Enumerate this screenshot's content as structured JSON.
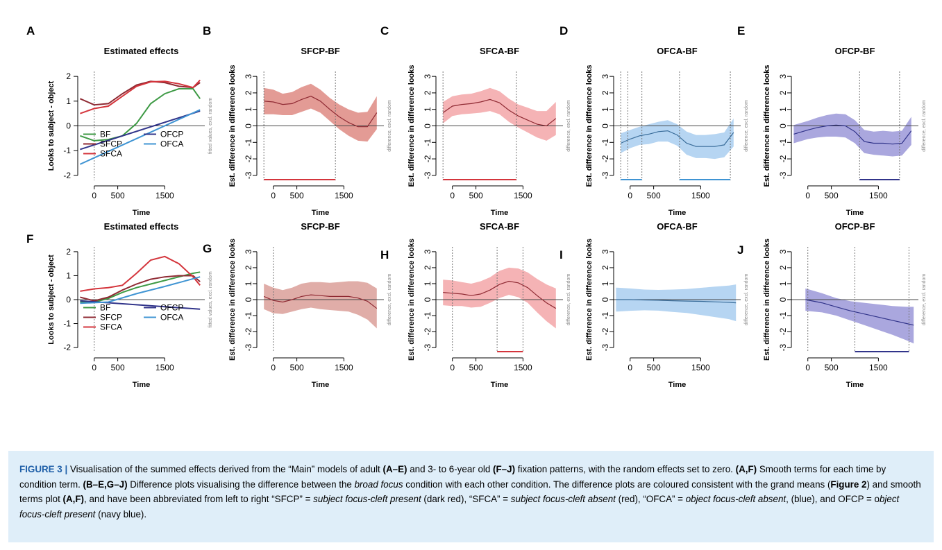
{
  "chart_data": [
    {
      "letter": "A",
      "kind": "effects",
      "title": "Estimated effects",
      "type": "line",
      "xlabel": "Time",
      "ylabel": "Looks to subject - object",
      "side_note": "fitted values, excl. random",
      "xlim": [
        -350,
        2350
      ],
      "ylim": [
        -2.2,
        2.2
      ],
      "xticks": [
        0,
        500,
        1500
      ],
      "yticks": [
        -2,
        -1,
        0,
        1,
        2
      ],
      "vlines": [
        0
      ],
      "legend": {
        "placement": "bottom-right",
        "cols": [
          [
            "BF",
            "SFCP",
            "SFCA"
          ],
          [
            "OFCP",
            "OFCA"
          ]
        ]
      },
      "series": [
        {
          "name": "BF",
          "color": "#3e9a45",
          "x": [
            -300,
            0,
            300,
            600,
            900,
            1200,
            1500,
            1800,
            2100,
            2250
          ],
          "y": [
            -0.4,
            -0.6,
            -0.55,
            -0.4,
            0.1,
            0.9,
            1.3,
            1.5,
            1.5,
            1.1
          ]
        },
        {
          "name": "SFCP",
          "color": "#8f2a33",
          "x": [
            -300,
            0,
            300,
            600,
            900,
            1200,
            1500,
            1800,
            2100,
            2250
          ],
          "y": [
            1.1,
            0.85,
            0.9,
            1.3,
            1.65,
            1.8,
            1.75,
            1.6,
            1.55,
            1.75
          ]
        },
        {
          "name": "SFCA",
          "color": "#d4353c",
          "x": [
            -300,
            0,
            300,
            600,
            900,
            1200,
            1500,
            1800,
            2100,
            2250
          ],
          "y": [
            0.5,
            0.7,
            0.8,
            1.2,
            1.6,
            1.78,
            1.8,
            1.7,
            1.55,
            1.85
          ]
        },
        {
          "name": "OFCP",
          "color": "#31348a",
          "x": [
            -300,
            2250
          ],
          "y": [
            -0.95,
            0.6
          ]
        },
        {
          "name": "OFCA",
          "color": "#3f94d3",
          "x": [
            -300,
            2250
          ],
          "y": [
            -1.55,
            0.65
          ]
        }
      ]
    },
    {
      "letter": "B",
      "kind": "diff",
      "title": "SFCP-BF",
      "type": "line",
      "xlabel": "Time",
      "ylabel": "Est. difference in difference looks",
      "side_note": "difference, excl. random",
      "xlim": [
        -350,
        2350
      ],
      "ylim": [
        -3.3,
        3.3
      ],
      "xticks": [
        0,
        500,
        1500
      ],
      "yticks": [
        -3,
        -2,
        -1,
        0,
        1,
        2,
        3
      ],
      "vlines": [
        -200,
        1320
      ],
      "line_color": "#8f2a33",
      "fill_color": "#d97a72",
      "x": [
        -200,
        0,
        200,
        400,
        600,
        800,
        1000,
        1200,
        1400,
        1600,
        1800,
        2000,
        2200
      ],
      "y": [
        1.5,
        1.45,
        1.3,
        1.35,
        1.6,
        1.8,
        1.5,
        1.0,
        0.55,
        0.2,
        -0.05,
        -0.05,
        0.8
      ],
      "ci": [
        0.8,
        0.75,
        0.65,
        0.7,
        0.75,
        0.75,
        0.7,
        0.7,
        0.75,
        0.8,
        0.85,
        0.9,
        1.0
      ],
      "sig_color": "#d4353c",
      "sig": [
        [
          -200,
          1320
        ]
      ]
    },
    {
      "letter": "C",
      "kind": "diff",
      "title": "SFCA-BF",
      "type": "line",
      "xlabel": "Time",
      "ylabel": "Est. difference in difference looks",
      "side_note": "difference, excl. random",
      "xlim": [
        -350,
        2350
      ],
      "ylim": [
        -3.3,
        3.3
      ],
      "xticks": [
        0,
        500,
        1500
      ],
      "yticks": [
        -3,
        -2,
        -1,
        0,
        1,
        2,
        3
      ],
      "vlines": [
        -200,
        1360
      ],
      "line_color": "#8f2a33",
      "fill_color": "#f19a9c",
      "x": [
        -200,
        0,
        200,
        400,
        600,
        800,
        1000,
        1200,
        1400,
        1600,
        1800,
        2000,
        2200
      ],
      "y": [
        0.8,
        1.2,
        1.3,
        1.35,
        1.45,
        1.6,
        1.4,
        0.95,
        0.6,
        0.35,
        0.1,
        0.0,
        0.45
      ],
      "ci": [
        0.65,
        0.6,
        0.6,
        0.6,
        0.65,
        0.7,
        0.7,
        0.7,
        0.7,
        0.75,
        0.8,
        0.9,
        1.0
      ],
      "sig_color": "#d4353c",
      "sig": [
        [
          -200,
          1360
        ]
      ]
    },
    {
      "letter": "D",
      "kind": "diff",
      "title": "OFCA-BF",
      "type": "line",
      "xlabel": "Time",
      "ylabel": "Est. difference in difference looks",
      "side_note": "difference, excl. random",
      "xlim": [
        -350,
        2350
      ],
      "ylim": [
        -3.3,
        3.3
      ],
      "xticks": [
        0,
        500,
        1500
      ],
      "yticks": [
        -3,
        -2,
        -1,
        0,
        1,
        2,
        3
      ],
      "vlines": [
        -200,
        -50,
        250,
        1050,
        2130
      ],
      "line_color": "#3a6d9a",
      "fill_color": "#9ec7ee",
      "x": [
        -200,
        0,
        200,
        400,
        600,
        800,
        1000,
        1200,
        1400,
        1600,
        1800,
        2000,
        2200
      ],
      "y": [
        -1.05,
        -0.8,
        -0.6,
        -0.5,
        -0.35,
        -0.3,
        -0.55,
        -1.05,
        -1.25,
        -1.25,
        -1.25,
        -1.15,
        -0.4
      ],
      "ci": [
        0.6,
        0.55,
        0.55,
        0.6,
        0.6,
        0.65,
        0.65,
        0.7,
        0.7,
        0.7,
        0.75,
        0.75,
        0.85
      ],
      "sig_color": "#3f94d3",
      "sig": [
        [
          -200,
          250
        ],
        [
          1050,
          2130
        ]
      ]
    },
    {
      "letter": "E",
      "kind": "diff",
      "title": "OFCP-BF",
      "type": "line",
      "xlabel": "Time",
      "ylabel": "Est. difference in difference looks",
      "side_note": "difference, excl. random",
      "xlim": [
        -350,
        2350
      ],
      "ylim": [
        -3.3,
        3.3
      ],
      "xticks": [
        0,
        500,
        1500
      ],
      "yticks": [
        -3,
        -2,
        -1,
        0,
        1,
        2,
        3
      ],
      "vlines": [
        1100,
        1950
      ],
      "line_color": "#31348a",
      "fill_color": "#8d89d3",
      "x": [
        -300,
        0,
        200,
        400,
        600,
        800,
        1000,
        1200,
        1400,
        1600,
        1800,
        2000,
        2200
      ],
      "y": [
        -0.5,
        -0.25,
        -0.1,
        0.0,
        0.05,
        0.0,
        -0.35,
        -0.95,
        -1.05,
        -1.05,
        -1.1,
        -1.05,
        -0.3
      ],
      "ci": [
        0.55,
        0.55,
        0.6,
        0.65,
        0.7,
        0.7,
        0.7,
        0.7,
        0.7,
        0.75,
        0.75,
        0.75,
        0.85
      ],
      "sig_color": "#31348a",
      "sig": [
        [
          1100,
          1950
        ]
      ]
    },
    {
      "letter": "F",
      "kind": "effects",
      "title": "Estimated effects",
      "type": "line",
      "xlabel": "Time",
      "ylabel": "Looks to subject - object",
      "side_note": "fitted values, excl. random",
      "xlim": [
        -350,
        2350
      ],
      "ylim": [
        -2.2,
        2.2
      ],
      "xticks": [
        0,
        500,
        1500
      ],
      "yticks": [
        -2,
        -1,
        0,
        1,
        2
      ],
      "vlines": [
        0
      ],
      "legend": {
        "placement": "bottom-right",
        "cols": [
          [
            "BF",
            "SFCP",
            "SFCA"
          ],
          [
            "OFCP",
            "OFCA"
          ]
        ]
      },
      "series": [
        {
          "name": "BF",
          "color": "#3e9a45",
          "x": [
            -300,
            0,
            300,
            600,
            900,
            1200,
            1500,
            1800,
            2100,
            2250
          ],
          "y": [
            -0.1,
            -0.1,
            0.05,
            0.3,
            0.5,
            0.65,
            0.8,
            0.95,
            1.1,
            1.15
          ]
        },
        {
          "name": "SFCP",
          "color": "#8f2a33",
          "x": [
            -300,
            0,
            300,
            600,
            900,
            1200,
            1500,
            1800,
            2100,
            2250
          ],
          "y": [
            0.1,
            -0.05,
            0.1,
            0.4,
            0.65,
            0.85,
            0.95,
            1.0,
            1.0,
            0.75
          ]
        },
        {
          "name": "SFCA",
          "color": "#d4353c",
          "x": [
            -300,
            0,
            300,
            600,
            900,
            1200,
            1500,
            1800,
            2100,
            2250
          ],
          "y": [
            0.35,
            0.45,
            0.5,
            0.6,
            1.1,
            1.65,
            1.8,
            1.5,
            0.95,
            0.6
          ]
        },
        {
          "name": "OFCP",
          "color": "#31348a",
          "x": [
            -300,
            2250
          ],
          "y": [
            -0.05,
            -0.4
          ]
        },
        {
          "name": "OFCA",
          "color": "#3f94d3",
          "x": [
            -300,
            300,
            900,
            1500,
            2250
          ],
          "y": [
            -0.15,
            -0.1,
            0.25,
            0.55,
            0.95
          ]
        }
      ]
    },
    {
      "letter": "G",
      "kind": "diff",
      "title": "SFCP-BF",
      "type": "line",
      "xlabel": "Time",
      "ylabel": "Est. difference in difference looks",
      "side_note": "difference, excl. random",
      "xlim": [
        -350,
        2350
      ],
      "ylim": [
        -3.3,
        3.3
      ],
      "xticks": [
        0,
        500,
        1500
      ],
      "yticks": [
        -3,
        -2,
        -1,
        0,
        1,
        2,
        3
      ],
      "vlines": [
        0
      ],
      "line_color": "#8f2a33",
      "fill_color": "#d6918b",
      "x": [
        -200,
        0,
        200,
        400,
        600,
        800,
        1000,
        1200,
        1400,
        1600,
        1800,
        2000,
        2200
      ],
      "y": [
        0.2,
        -0.05,
        -0.15,
        0.0,
        0.2,
        0.3,
        0.25,
        0.2,
        0.2,
        0.2,
        0.1,
        -0.1,
        -0.55
      ],
      "ci": [
        0.8,
        0.8,
        0.75,
        0.75,
        0.8,
        0.8,
        0.85,
        0.85,
        0.9,
        0.95,
        1.05,
        1.15,
        1.25
      ],
      "sig_color": "#d4353c",
      "sig": []
    },
    {
      "letter": "H",
      "kind": "diff",
      "title": "SFCA-BF",
      "type": "line",
      "xlabel": "Time",
      "ylabel": "Est. difference in difference looks",
      "side_note": "difference, excl. random",
      "xlim": [
        -350,
        2350
      ],
      "ylim": [
        -3.3,
        3.3
      ],
      "xticks": [
        0,
        500,
        1500
      ],
      "yticks": [
        -3,
        -2,
        -1,
        0,
        1,
        2,
        3
      ],
      "vlines": [
        0,
        950,
        1500
      ],
      "line_color": "#8f2a33",
      "fill_color": "#f19a9c",
      "x": [
        -200,
        0,
        200,
        400,
        600,
        800,
        1000,
        1200,
        1400,
        1600,
        1800,
        2000,
        2200
      ],
      "y": [
        0.45,
        0.4,
        0.35,
        0.25,
        0.35,
        0.6,
        0.95,
        1.15,
        1.05,
        0.75,
        0.25,
        -0.2,
        -0.55
      ],
      "ci": [
        0.8,
        0.8,
        0.75,
        0.75,
        0.8,
        0.8,
        0.85,
        0.85,
        0.9,
        0.95,
        1.05,
        1.15,
        1.25
      ],
      "sig_color": "#d4353c",
      "sig": [
        [
          950,
          1500
        ]
      ]
    },
    {
      "letter": "I",
      "kind": "diff",
      "title": "OFCA-BF",
      "type": "line",
      "xlabel": "Time",
      "ylabel": "Est. difference in difference looks",
      "side_note": "difference, excl. random",
      "xlim": [
        -350,
        2350
      ],
      "ylim": [
        -3.3,
        3.3
      ],
      "xticks": [
        0,
        500,
        1500
      ],
      "yticks": [
        -3,
        -2,
        -1,
        0,
        1,
        2,
        3
      ],
      "vlines": [],
      "line_color": "#3a6d9a",
      "fill_color": "#9ec7ee",
      "x": [
        -300,
        0,
        300,
        600,
        900,
        1200,
        1500,
        1800,
        2100,
        2250
      ],
      "y": [
        0.0,
        0.0,
        -0.02,
        -0.04,
        -0.07,
        -0.09,
        -0.11,
        -0.14,
        -0.17,
        -0.2
      ],
      "ci": [
        0.75,
        0.7,
        0.65,
        0.65,
        0.7,
        0.75,
        0.85,
        0.95,
        1.05,
        1.15
      ],
      "sig_color": "#3f94d3",
      "sig": []
    },
    {
      "letter": "J",
      "kind": "diff",
      "title": "OFCP-BF",
      "type": "line",
      "xlabel": "Time",
      "ylabel": "Est. difference in difference looks",
      "side_note": "difference, excl. random",
      "xlim": [
        -350,
        2350
      ],
      "ylim": [
        -3.3,
        3.3
      ],
      "xticks": [
        0,
        500,
        1500
      ],
      "yticks": [
        -3,
        -2,
        -1,
        0,
        1,
        2,
        3
      ],
      "vlines": [
        0,
        1000,
        2150
      ],
      "line_color": "#31348a",
      "fill_color": "#8d89d3",
      "x": [
        -50,
        300,
        600,
        900,
        1200,
        1500,
        1800,
        2100,
        2250
      ],
      "y": [
        0.0,
        -0.2,
        -0.45,
        -0.7,
        -0.9,
        -1.1,
        -1.3,
        -1.5,
        -1.6
      ],
      "ci": [
        0.7,
        0.6,
        0.55,
        0.6,
        0.7,
        0.8,
        0.9,
        1.05,
        1.15
      ],
      "sig_color": "#31348a",
      "sig": [
        [
          1000,
          2150
        ]
      ]
    }
  ],
  "caption": {
    "figure_label": "FIGURE 3 |",
    "parts": [
      {
        "t": " Visualisation of the summed effects derived from the “Main” models of adult "
      },
      {
        "t": "(A–E)",
        "s": "b"
      },
      {
        "t": " and 3- to 6-year old "
      },
      {
        "t": "(F–J)",
        "s": "b"
      },
      {
        "t": " fixation patterns, with the random effects set to zero. "
      },
      {
        "t": "(A,F)",
        "s": "b"
      },
      {
        "t": " Smooth terms for each time by condition term. "
      },
      {
        "t": "(B–E,G–J)",
        "s": "b"
      },
      {
        "t": " Difference plots visualising the difference between the "
      },
      {
        "t": "broad focus",
        "s": "i"
      },
      {
        "t": " condition with each other condition. The difference plots are coloured consistent with the grand means ("
      },
      {
        "t": "Figure 2",
        "s": "b"
      },
      {
        "t": ") and smooth terms plot "
      },
      {
        "t": "(A,F)",
        "s": "b"
      },
      {
        "t": ", and have been abbreviated from left to right “SFCP” = "
      },
      {
        "t": "subject focus-cleft present",
        "s": "i"
      },
      {
        "t": " (dark red), “SFCA” = "
      },
      {
        "t": "subject focus-cleft absent",
        "s": "i"
      },
      {
        "t": " (red), “OFCA” = "
      },
      {
        "t": "object focus-cleft absent",
        "s": "i"
      },
      {
        "t": ", (blue), and OFCP = o"
      },
      {
        "t": "bject focus-cleft present",
        "s": "i"
      },
      {
        "t": " (navy blue)."
      }
    ]
  }
}
